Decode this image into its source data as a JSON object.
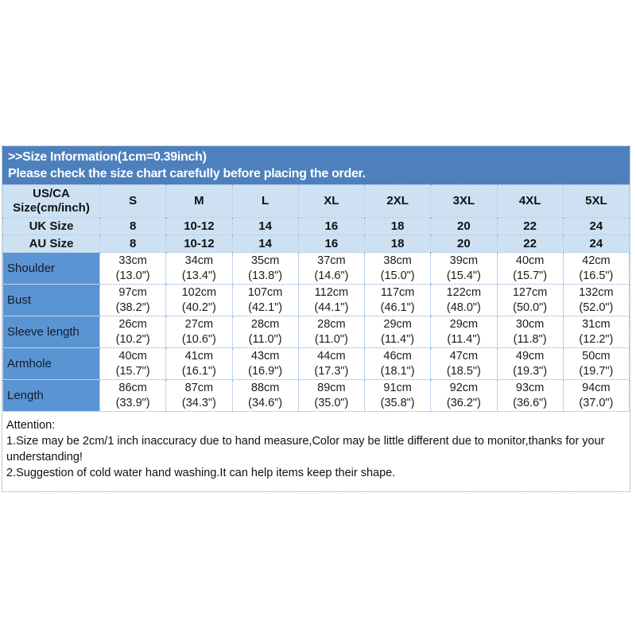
{
  "header": {
    "line1": ">>Size Information(1cm=0.39inch)",
    "line2": "Please check the size chart carefully before placing the order."
  },
  "size_chart": {
    "corner_label": "US/CA\nSize(cm/inch)",
    "size_columns": [
      "S",
      "M",
      "L",
      "XL",
      "2XL",
      "3XL",
      "4XL",
      "5XL"
    ],
    "uk_size": {
      "label": "UK Size",
      "values": [
        "8",
        "10-12",
        "14",
        "16",
        "18",
        "20",
        "22",
        "24"
      ]
    },
    "au_size": {
      "label": "AU Size",
      "values": [
        "8",
        "10-12",
        "14",
        "16",
        "18",
        "20",
        "22",
        "24"
      ]
    },
    "measurements": [
      {
        "label": "Shoulder",
        "values": [
          "33cm\n(13.0\")",
          "34cm\n(13.4\")",
          "35cm\n(13.8\")",
          "37cm\n(14.6\")",
          "38cm\n(15.0\")",
          "39cm\n(15.4\")",
          "40cm\n(15.7\")",
          "42cm\n(16.5\")"
        ]
      },
      {
        "label": "Bust",
        "values": [
          "97cm\n(38.2\")",
          "102cm\n(40.2\")",
          "107cm\n(42.1\")",
          "112cm\n(44.1\")",
          "117cm\n(46.1\")",
          "122cm\n(48.0\")",
          "127cm\n(50.0\")",
          "132cm\n(52.0\")"
        ]
      },
      {
        "label": "Sleeve length",
        "values": [
          "26cm\n(10.2\")",
          "27cm\n(10.6\")",
          "28cm\n(11.0\")",
          "28cm\n(11.0\")",
          "29cm\n(11.4\")",
          "29cm\n(11.4\")",
          "30cm\n(11.8\")",
          "31cm\n(12.2\")"
        ]
      },
      {
        "label": "Armhole",
        "values": [
          "40cm\n(15.7\")",
          "41cm\n(16.1\")",
          "43cm\n(16.9\")",
          "44cm\n(17.3\")",
          "46cm\n(18.1\")",
          "47cm\n(18.5\")",
          "49cm\n(19.3\")",
          "50cm\n(19.7\")"
        ]
      },
      {
        "label": "Length",
        "values": [
          "86cm\n(33.9\")",
          "87cm\n(34.3\")",
          "88cm\n(34.6\")",
          "89cm\n(35.0\")",
          "91cm\n(35.8\")",
          "92cm\n(36.2\")",
          "93cm\n(36.6\")",
          "94cm\n(37.0\")"
        ]
      }
    ]
  },
  "attention": {
    "lines": [
      "Attention:",
      "1.Size may be 2cm/1 inch inaccuracy due to hand measure,Color may be little different due to monitor,thanks for your",
      "understanding!",
      "2.Suggestion of cold water hand washing.It can help items keep their shape."
    ]
  },
  "colors": {
    "title_bar": "#4d80bd",
    "header_row_bg": "#cde1f3",
    "row_label_bg": "#5b94d2",
    "grid_line": "#80a9d7",
    "outer_border": "#7c99b6",
    "title_text": "#ffffff",
    "body_text": "#1b1b1b"
  }
}
